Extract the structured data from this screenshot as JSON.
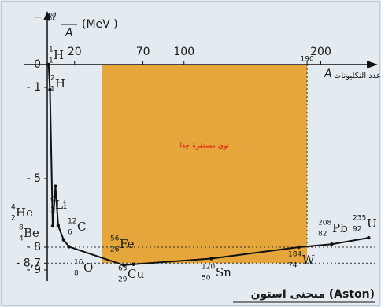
{
  "chart_data": {
    "type": "line",
    "y_label": {
      "numerator": "− 𝓔ℓ",
      "denominator": "A",
      "unit": "(MeV )"
    },
    "x_label": {
      "symbol": "A",
      "text": "عدد النكليونات"
    },
    "region_label": "نوى مستقرة جدا",
    "caption": "منحنى استون (Aston)",
    "xlim": [
      0,
      240
    ],
    "ylim": [
      -9.5,
      0
    ],
    "xticks": [
      20,
      70,
      100,
      190,
      200
    ],
    "yticks": [
      0,
      {
        "value": -1,
        "label": "- 1"
      },
      {
        "value": -5,
        "label": "- 5"
      },
      {
        "value": -8,
        "label": "- 8"
      },
      {
        "value": -8.7,
        "label": "- 8,7"
      },
      {
        "value": -9,
        "label": "- 9"
      }
    ],
    "stable_region": {
      "x": [
        40,
        190
      ],
      "y": [
        -8.7,
        0
      ],
      "color": "#e5a73b"
    },
    "series": [
      {
        "name": "Aston",
        "color": "#111111",
        "x": [
          1,
          2,
          4,
          6,
          8,
          12,
          16,
          56,
          63,
          120,
          184,
          208,
          235
        ],
        "values": [
          0,
          -1.1,
          -7.07,
          -5.33,
          -7.06,
          -7.68,
          -7.98,
          -8.79,
          -8.75,
          -8.5,
          -8.0,
          -7.87,
          -7.59
        ]
      }
    ],
    "point_labels": [
      {
        "mass": "1",
        "atomic": "1",
        "symbol": "H"
      },
      {
        "mass": "2",
        "atomic": "1",
        "symbol": "H"
      },
      {
        "mass": "4",
        "atomic": "2",
        "symbol": "He"
      },
      {
        "mass": "6",
        "atomic": "3",
        "symbol": "Li"
      },
      {
        "mass": "8",
        "atomic": "4",
        "symbol": "Be"
      },
      {
        "mass": "12",
        "atomic": "6",
        "symbol": "C"
      },
      {
        "mass": "16",
        "atomic": "8",
        "symbol": "O"
      },
      {
        "mass": "56",
        "atomic": "26",
        "symbol": "Fe"
      },
      {
        "mass": "63",
        "atomic": "29",
        "symbol": "Cu"
      },
      {
        "mass": "120",
        "atomic": "50",
        "symbol": "Sn"
      },
      {
        "mass": "184",
        "atomic": "74",
        "symbol": "W"
      },
      {
        "mass": "208",
        "atomic": "82",
        "symbol": "Pb"
      },
      {
        "mass": "235",
        "atomic": "92",
        "symbol": "U"
      }
    ]
  }
}
